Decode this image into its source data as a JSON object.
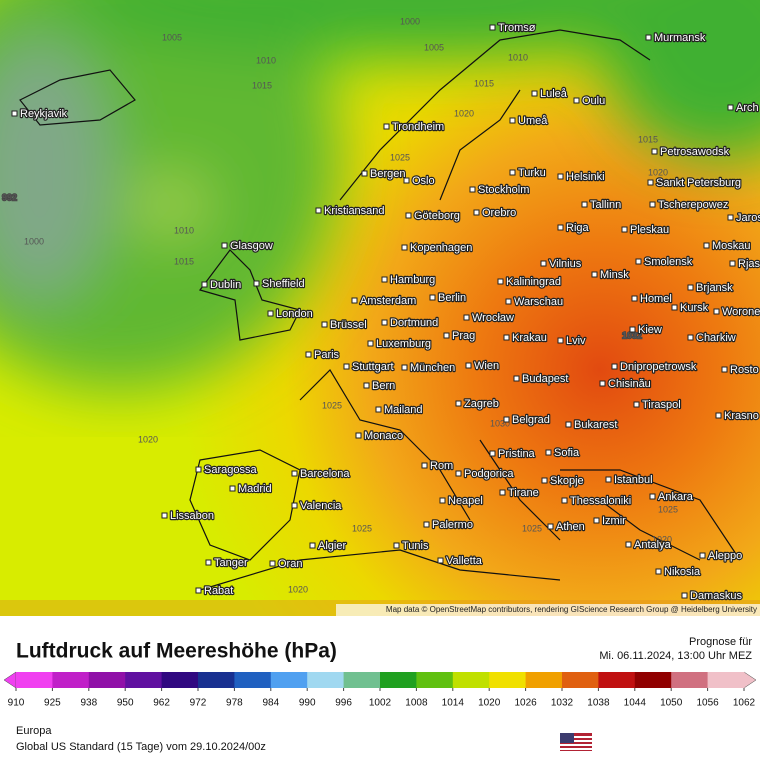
{
  "map": {
    "cities": [
      "Tromsø",
      "Murmansk",
      "Luleå",
      "Oulu",
      "Arch",
      "Reykjavik",
      "Trondheim",
      "Umeå",
      "Petrosawodsk",
      "Bergen",
      "Turku",
      "Helsinki",
      "Sankt Petersburg",
      "Oslo",
      "Stockholm",
      "Tallinn",
      "Tscherepowez",
      "Kristiansand",
      "Göteborg",
      "Orebro",
      "Jaros",
      "Glasgow",
      "Kopenhagen",
      "Riga",
      "Pleskau",
      "Moskau",
      "Dublin",
      "Sheffield",
      "Hamburg",
      "Kaliningrad",
      "Vilnius",
      "Minsk",
      "Smolensk",
      "Rjas",
      "Brjansk",
      "London",
      "Amsterdam",
      "Berlin",
      "Warschau",
      "Homel",
      "Kursk",
      "Worone",
      "Brüssel",
      "Dortmund",
      "Wrocław",
      "Krakau",
      "Kiew",
      "Charkiw",
      "Paris",
      "Luxemburg",
      "Prag",
      "Lviv",
      "Stuttgart",
      "München",
      "Wien",
      "Dnipropetrowsk",
      "Rosto",
      "Budapest",
      "Chisinău",
      "Bern",
      "Mailand",
      "Zagreb",
      "Tiraspol",
      "Krasno",
      "Belgrad",
      "Bukarest",
      "Monaco",
      "Pristina",
      "Sofia",
      "Saragossa",
      "Barcelona",
      "Rom",
      "Podgorica",
      "Istanbul",
      "Madrid",
      "Tirane",
      "Skopje",
      "Ankara",
      "Thessaloniki",
      "Valencia",
      "Neapel",
      "Lissabon",
      "Palermo",
      "Izmir",
      "Athen",
      "Algier",
      "Tunis",
      "Antalya",
      "Aleppo",
      "Tanger",
      "Oran",
      "Valletta",
      "Nikosia",
      "Rabat",
      "Damaskus"
    ],
    "isobar_labels": [
      1000,
      1005,
      1005,
      1010,
      1010,
      1015,
      1015,
      1020,
      1025,
      1015,
      1020,
      992,
      1010,
      1000,
      1015,
      1025,
      1020,
      1030,
      1025,
      1025,
      1025,
      1020,
      1020,
      1032
    ],
    "attribution": "Map data © OpenStreetMap contributors, rendering GIScience Research Group @ Heidelberg University"
  },
  "legend": {
    "title": "Luftdruck auf Meereshöhe (hPa)",
    "ticks": [
      910,
      925,
      938,
      950,
      962,
      972,
      978,
      984,
      990,
      996,
      1002,
      1008,
      1014,
      1020,
      1026,
      1032,
      1038,
      1044,
      1050,
      1056,
      1062
    ],
    "colors": [
      "#f040f0",
      "#c020c8",
      "#9010a8",
      "#6010a0",
      "#300880",
      "#183090",
      "#2060c0",
      "#50a0f0",
      "#a0d8f0",
      "#70c090",
      "#20a020",
      "#60c010",
      "#c0e000",
      "#f0e000",
      "#f0a000",
      "#e06010",
      "#c01010",
      "#900000",
      "#d07080",
      "#f0c0c8"
    ]
  },
  "forecast": {
    "label": "Prognose für",
    "time": "Mi. 06.11.2024, 13:00 Uhr MEZ"
  },
  "footer": {
    "region": "Europa",
    "model": "Global US Standard (15 Tage)  vom  29.10.2024/00z"
  }
}
